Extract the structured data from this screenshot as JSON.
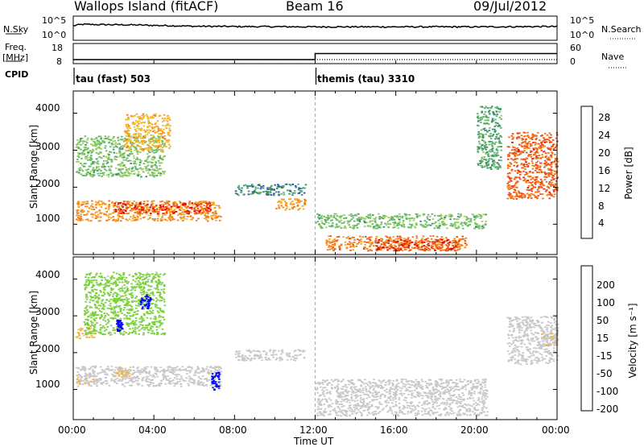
{
  "header": {
    "station": "Wallops Island (fitACF)",
    "beam": "Beam 16",
    "date": "09/Jul/2012"
  },
  "summary_panel": {
    "nsky_label": "N.Sky",
    "nsky_ticks": [
      "10^5",
      "10^0"
    ],
    "nsearch_label": "N.Search",
    "nsearch_ticks": [
      "10^5",
      "10^0"
    ],
    "freq_label_top": "Freq.",
    "freq_label_unit": "[MHz]",
    "freq_ticks": [
      "18",
      "8"
    ],
    "nave_label": "Nave",
    "nave_ticks": [
      "60",
      "0"
    ],
    "cpid_label": "CPID",
    "cpid_modes": [
      "tau (fast) 503",
      "themis (tau) 3310"
    ]
  },
  "colorbars": {
    "power": {
      "label": "Power [dB]",
      "ticks": [
        "28",
        "24",
        "20",
        "16",
        "12",
        "8",
        "4"
      ],
      "colors": [
        "#0020ff",
        "#2a52b8",
        "#3f8f6a",
        "#67b96b",
        "#9cd35b",
        "#e8c83a",
        "#f5a623",
        "#f07a1a",
        "#ef4a14",
        "#e60000"
      ]
    },
    "velocity": {
      "label": "Velocity [m s⁻¹]",
      "ticks": [
        "200",
        "100",
        "50",
        "15",
        "-15",
        "-50",
        "-100",
        "-200"
      ],
      "colors": [
        "#ff0000",
        "#ff5a00",
        "#ff9a00",
        "#f5b23a",
        "#c8c8c8",
        "#c8c8c8",
        "#7ad13a",
        "#3aa83a",
        "#2a7a7a",
        "#1a3ab0",
        "#0000ff"
      ]
    }
  },
  "chart_data": [
    {
      "type": "line",
      "title": "Wallops Island (fitACF) Beam 16 09/Jul/2012",
      "xlabel": "Time UT",
      "x_ticks": [
        "00:00",
        "04:00",
        "08:00",
        "12:00",
        "16:00",
        "20:00",
        "00:00"
      ],
      "series": [
        {
          "name": "N.Sky",
          "x_hours": [
            0,
            0.5,
            1,
            3,
            4,
            6,
            8,
            12,
            16,
            20,
            24
          ],
          "values": [
            1000,
            2000,
            1800,
            1500,
            1200,
            800,
            700,
            600,
            600,
            600,
            700
          ]
        },
        {
          "name": "Freq.",
          "x_hours": [
            0,
            12,
            12,
            24
          ],
          "values": [
            10,
            10,
            13,
            13
          ]
        },
        {
          "name": "Nave",
          "x_hours": [
            0,
            24
          ],
          "values": [
            12,
            12
          ]
        }
      ],
      "cpid": [
        {
          "label": "tau (fast) 503",
          "start_hour": 0,
          "end_hour": 12
        },
        {
          "label": "themis (tau) 3310",
          "start_hour": 12,
          "end_hour": 24
        }
      ]
    },
    {
      "type": "heatmap",
      "quantity": "Power",
      "ylabel": "Slant Range [km]",
      "y_ticks": [
        "1000",
        "2000",
        "3000",
        "4000"
      ],
      "ylim": [
        180,
        4600
      ],
      "clim": [
        0,
        32
      ],
      "regions": [
        {
          "t0": 0.1,
          "t1": 7.3,
          "r0": 1100,
          "r1": 1650,
          "level": 22
        },
        {
          "t0": 2.0,
          "t1": 6.8,
          "r0": 1300,
          "r1": 1600,
          "level": 28
        },
        {
          "t0": 0.1,
          "t1": 4.5,
          "r0": 2300,
          "r1": 3400,
          "level": 12
        },
        {
          "t0": 2.5,
          "t1": 4.8,
          "r0": 3000,
          "r1": 4000,
          "level": 20
        },
        {
          "t0": 8.0,
          "t1": 11.5,
          "r0": 1800,
          "r1": 2100,
          "level": 8
        },
        {
          "t0": 10.0,
          "t1": 11.5,
          "r0": 1400,
          "r1": 1700,
          "level": 22
        },
        {
          "t0": 12.0,
          "t1": 20.5,
          "r0": 900,
          "r1": 1300,
          "level": 12
        },
        {
          "t0": 12.5,
          "t1": 19.5,
          "r0": 300,
          "r1": 700,
          "level": 24
        },
        {
          "t0": 15.0,
          "t1": 19.0,
          "r0": 300,
          "r1": 600,
          "level": 28
        },
        {
          "t0": 20.0,
          "t1": 21.2,
          "r0": 2500,
          "r1": 4200,
          "level": 10
        },
        {
          "t0": 21.5,
          "t1": 24.0,
          "r0": 1700,
          "r1": 3500,
          "level": 26
        }
      ]
    },
    {
      "type": "heatmap",
      "quantity": "Velocity",
      "xlabel": "Time UT",
      "ylabel": "Slant Range [km]",
      "y_ticks": [
        "1000",
        "2000",
        "3000",
        "4000"
      ],
      "ylim": [
        180,
        4600
      ],
      "clim": [
        -250,
        250
      ],
      "regions": [
        {
          "t0": 0.1,
          "t1": 7.3,
          "r0": 1100,
          "r1": 1650,
          "level": 0
        },
        {
          "t0": 0.1,
          "t1": 1.2,
          "r0": 1150,
          "r1": 1400,
          "level": -60
        },
        {
          "t0": 2.0,
          "t1": 2.8,
          "r0": 1350,
          "r1": 1600,
          "level": -70
        },
        {
          "t0": 0.1,
          "t1": 1.0,
          "r0": 2400,
          "r1": 2700,
          "level": -80
        },
        {
          "t0": 0.5,
          "t1": 4.5,
          "r0": 2500,
          "r1": 4200,
          "level": 40
        },
        {
          "t0": 3.3,
          "t1": 3.8,
          "r0": 3200,
          "r1": 3600,
          "level": 220
        },
        {
          "t0": 2.1,
          "t1": 2.4,
          "r0": 2600,
          "r1": 2900,
          "level": 220
        },
        {
          "t0": 6.8,
          "t1": 7.2,
          "r0": 1000,
          "r1": 1500,
          "level": 220
        },
        {
          "t0": 8.0,
          "t1": 11.5,
          "r0": 1800,
          "r1": 2100,
          "level": 0
        },
        {
          "t0": 12.0,
          "t1": 20.5,
          "r0": 300,
          "r1": 1300,
          "level": 0
        },
        {
          "t0": 21.5,
          "t1": 24.0,
          "r0": 1700,
          "r1": 3000,
          "level": 0
        },
        {
          "t0": 23.2,
          "t1": 24.0,
          "r0": 2200,
          "r1": 2700,
          "level": -60
        }
      ]
    }
  ]
}
